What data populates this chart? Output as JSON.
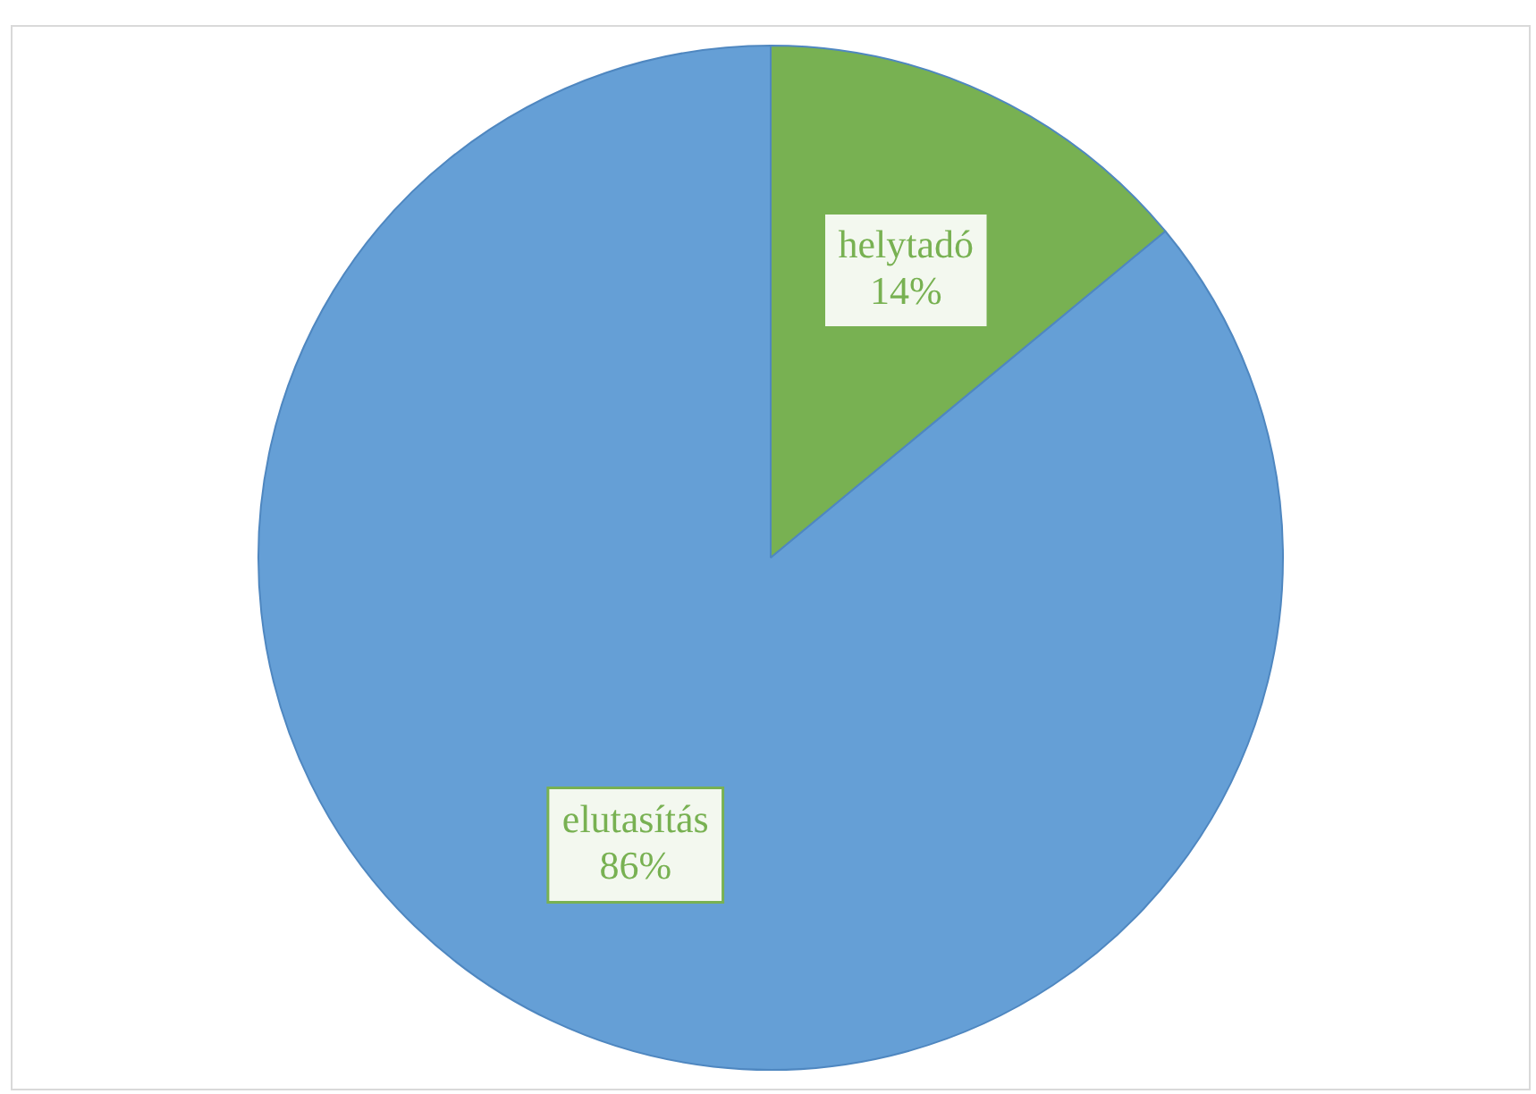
{
  "chart_data": {
    "type": "pie",
    "categories": [
      "helytadó",
      "elutasítás"
    ],
    "values": [
      14,
      86
    ],
    "colors": [
      "#78b152",
      "#659fd6"
    ],
    "value_labels": [
      "14%",
      "86%"
    ],
    "legend": false
  }
}
